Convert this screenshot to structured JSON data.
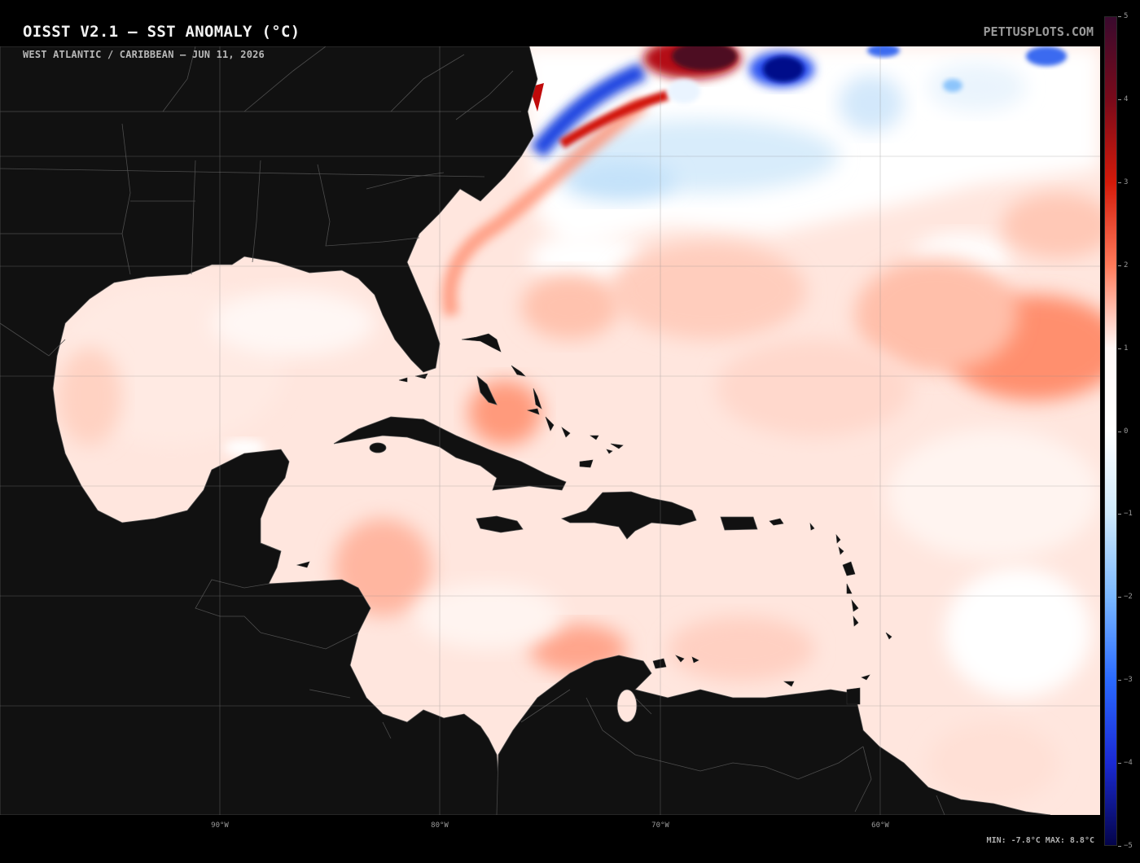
{
  "header": {
    "title": "OISST V2.1 — SST ANOMALY (°C)",
    "subtitle": "WEST ATLANTIC / CARIBBEAN — JUN 11, 2026",
    "brand": "PETTUSPLOTS.COM"
  },
  "map": {
    "longitude_labels": [
      "90°W",
      "80°W",
      "70°W",
      "60°W"
    ],
    "land_color": "#111111",
    "border_color": "#555555",
    "grid_color": "#8a8a8a"
  },
  "stats": {
    "text": "MIN: -7.8°C  MAX: 8.8°C"
  },
  "colorbar": {
    "labels": [
      "5",
      "4",
      "3",
      "2",
      "1",
      "0",
      "−1",
      "−2",
      "−3",
      "−4",
      "−5"
    ],
    "colors": [
      "#3a0a2e",
      "#7a0a1a",
      "#d41a0a",
      "#ff7a5a",
      "#fff8f6",
      "#ffffff",
      "#cfe9fb",
      "#7ab8ff",
      "#2a6aff",
      "#1a2ad4",
      "#04044a"
    ]
  }
}
